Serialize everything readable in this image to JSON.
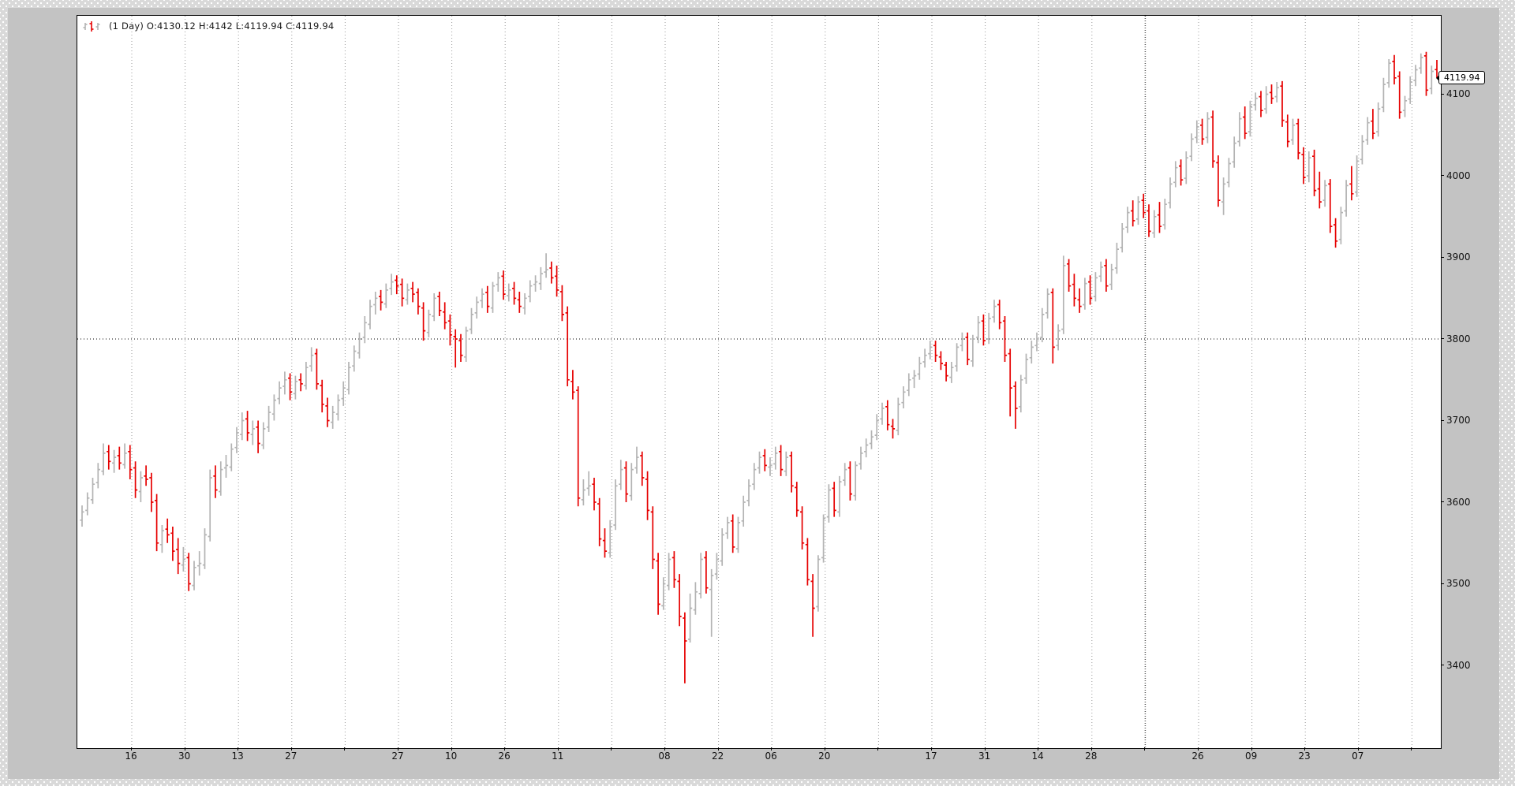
{
  "legend": {
    "text": "(1 Day) O:4130.12 H:4142 L:4119.94 C:4119.94"
  },
  "price_tag": {
    "value": "4119.94"
  },
  "colors": {
    "up_bar": "#b3b3b3",
    "down_bar": "#e60000",
    "grid": "#9a9a9a",
    "dark_grid": "#555555",
    "ref_line": "#333333",
    "plot_bg": "#ffffff",
    "window_bg": "#c3c3c3",
    "outer_bg": "#d9d9d9",
    "axis_text": "#111111"
  },
  "chart_data": {
    "type": "ohlc",
    "period": "1 Day",
    "legend_text": "(1 Day) O:4130.12 H:4142 L:4119.94 C:4119.94",
    "last_bar": {
      "open": 4130.12,
      "high": 4142,
      "low": 4119.94,
      "close": 4119.94
    },
    "last_price_label": "4119.94",
    "y_ticks": [
      4100,
      4000,
      3900,
      3800,
      3700,
      3600,
      3500,
      3400
    ],
    "ylim": [
      3297,
      4198
    ],
    "reference_line": 3800,
    "grid": "dotted",
    "x_tick_labels": [
      "16",
      "30",
      "13",
      "27",
      "",
      "27",
      "10",
      "26",
      "11",
      "",
      "08",
      "22",
      "06",
      "20",
      "",
      "17",
      "31",
      "14",
      "28",
      "",
      "26",
      "09",
      "23",
      "07",
      ""
    ],
    "dark_gridline_index": 19,
    "bars_format": [
      "open",
      "high",
      "low",
      "close"
    ],
    "bars": [
      [
        3578,
        3596,
        3570,
        3588
      ],
      [
        3590,
        3612,
        3584,
        3605
      ],
      [
        3603,
        3630,
        3598,
        3622
      ],
      [
        3624,
        3648,
        3617,
        3640
      ],
      [
        3638,
        3672,
        3633,
        3660
      ],
      [
        3662,
        3670,
        3640,
        3650
      ],
      [
        3648,
        3664,
        3636,
        3655
      ],
      [
        3657,
        3668,
        3640,
        3648
      ],
      [
        3646,
        3672,
        3641,
        3660
      ],
      [
        3662,
        3670,
        3628,
        3640
      ],
      [
        3642,
        3650,
        3605,
        3615
      ],
      [
        3613,
        3638,
        3600,
        3630
      ],
      [
        3632,
        3645,
        3620,
        3628
      ],
      [
        3630,
        3636,
        3588,
        3600
      ],
      [
        3602,
        3610,
        3540,
        3550
      ],
      [
        3548,
        3572,
        3538,
        3565
      ],
      [
        3567,
        3580,
        3550,
        3560
      ],
      [
        3562,
        3570,
        3528,
        3540
      ],
      [
        3542,
        3556,
        3512,
        3525
      ],
      [
        3523,
        3545,
        3515,
        3530
      ],
      [
        3532,
        3538,
        3491,
        3500
      ],
      [
        3498,
        3528,
        3492,
        3520
      ],
      [
        3522,
        3540,
        3510,
        3525
      ],
      [
        3523,
        3568,
        3518,
        3560
      ],
      [
        3558,
        3640,
        3552,
        3630
      ],
      [
        3632,
        3645,
        3605,
        3615
      ],
      [
        3613,
        3650,
        3608,
        3640
      ],
      [
        3642,
        3658,
        3630,
        3645
      ],
      [
        3643,
        3672,
        3638,
        3665
      ],
      [
        3667,
        3692,
        3660,
        3685
      ],
      [
        3683,
        3710,
        3676,
        3700
      ],
      [
        3702,
        3712,
        3675,
        3685
      ],
      [
        3683,
        3700,
        3670,
        3690
      ],
      [
        3692,
        3700,
        3660,
        3672
      ],
      [
        3670,
        3698,
        3665,
        3690
      ],
      [
        3692,
        3718,
        3686,
        3710
      ],
      [
        3708,
        3732,
        3700,
        3725
      ],
      [
        3727,
        3748,
        3720,
        3740
      ],
      [
        3742,
        3760,
        3732,
        3750
      ],
      [
        3752,
        3758,
        3725,
        3735
      ],
      [
        3733,
        3755,
        3726,
        3748
      ],
      [
        3750,
        3758,
        3736,
        3745
      ],
      [
        3743,
        3772,
        3738,
        3765
      ],
      [
        3767,
        3790,
        3760,
        3780
      ],
      [
        3782,
        3788,
        3738,
        3745
      ],
      [
        3743,
        3750,
        3710,
        3720
      ],
      [
        3718,
        3728,
        3692,
        3700
      ],
      [
        3698,
        3718,
        3690,
        3710
      ],
      [
        3708,
        3732,
        3700,
        3725
      ],
      [
        3727,
        3748,
        3718,
        3740
      ],
      [
        3738,
        3772,
        3732,
        3765
      ],
      [
        3767,
        3792,
        3760,
        3785
      ],
      [
        3783,
        3808,
        3776,
        3800
      ],
      [
        3802,
        3828,
        3795,
        3820
      ],
      [
        3818,
        3848,
        3812,
        3840
      ],
      [
        3842,
        3858,
        3830,
        3850
      ],
      [
        3852,
        3860,
        3835,
        3845
      ],
      [
        3843,
        3868,
        3838,
        3860
      ],
      [
        3862,
        3880,
        3854,
        3870
      ],
      [
        3872,
        3878,
        3855,
        3865
      ],
      [
        3867,
        3874,
        3840,
        3850
      ],
      [
        3848,
        3868,
        3842,
        3860
      ],
      [
        3862,
        3870,
        3845,
        3855
      ],
      [
        3857,
        3862,
        3830,
        3840
      ],
      [
        3838,
        3845,
        3798,
        3810
      ],
      [
        3808,
        3836,
        3802,
        3830
      ],
      [
        3828,
        3856,
        3822,
        3850
      ],
      [
        3852,
        3858,
        3828,
        3835
      ],
      [
        3833,
        3845,
        3812,
        3820
      ],
      [
        3822,
        3830,
        3792,
        3805
      ],
      [
        3803,
        3812,
        3765,
        3800
      ],
      [
        3798,
        3806,
        3772,
        3780
      ],
      [
        3778,
        3815,
        3772,
        3810
      ],
      [
        3812,
        3838,
        3806,
        3830
      ],
      [
        3832,
        3852,
        3825,
        3845
      ],
      [
        3847,
        3862,
        3838,
        3855
      ],
      [
        3857,
        3865,
        3832,
        3840
      ],
      [
        3838,
        3870,
        3832,
        3865
      ],
      [
        3867,
        3882,
        3858,
        3875
      ],
      [
        3877,
        3884,
        3848,
        3855
      ],
      [
        3853,
        3868,
        3846,
        3860
      ],
      [
        3862,
        3870,
        3842,
        3850
      ],
      [
        3848,
        3858,
        3832,
        3840
      ],
      [
        3838,
        3856,
        3830,
        3850
      ],
      [
        3852,
        3872,
        3845,
        3865
      ],
      [
        3867,
        3878,
        3858,
        3870
      ],
      [
        3868,
        3888,
        3860,
        3880
      ],
      [
        3882,
        3905,
        3875,
        3885
      ],
      [
        3887,
        3895,
        3868,
        3875
      ],
      [
        3877,
        3890,
        3852,
        3860
      ],
      [
        3858,
        3866,
        3822,
        3830
      ],
      [
        3832,
        3840,
        3742,
        3750
      ],
      [
        3748,
        3762,
        3726,
        3735
      ],
      [
        3737,
        3742,
        3595,
        3605
      ],
      [
        3603,
        3628,
        3596,
        3615
      ],
      [
        3617,
        3638,
        3608,
        3620
      ],
      [
        3622,
        3630,
        3590,
        3600
      ],
      [
        3598,
        3605,
        3546,
        3555
      ],
      [
        3553,
        3568,
        3532,
        3540
      ],
      [
        3538,
        3578,
        3532,
        3570
      ],
      [
        3572,
        3628,
        3566,
        3620
      ],
      [
        3622,
        3652,
        3615,
        3640
      ],
      [
        3642,
        3650,
        3600,
        3610
      ],
      [
        3608,
        3648,
        3602,
        3640
      ],
      [
        3642,
        3668,
        3635,
        3655
      ],
      [
        3657,
        3662,
        3620,
        3630
      ],
      [
        3628,
        3638,
        3578,
        3590
      ],
      [
        3588,
        3595,
        3518,
        3530
      ],
      [
        3528,
        3538,
        3462,
        3475
      ],
      [
        3473,
        3508,
        3468,
        3500
      ],
      [
        3498,
        3538,
        3492,
        3530
      ],
      [
        3532,
        3540,
        3495,
        3505
      ],
      [
        3503,
        3512,
        3448,
        3460
      ],
      [
        3458,
        3465,
        3378,
        3430
      ],
      [
        3432,
        3488,
        3428,
        3470
      ],
      [
        3468,
        3502,
        3462,
        3490
      ],
      [
        3488,
        3538,
        3482,
        3530
      ],
      [
        3532,
        3540,
        3488,
        3495
      ],
      [
        3493,
        3518,
        3435,
        3510
      ],
      [
        3512,
        3538,
        3505,
        3530
      ],
      [
        3528,
        3568,
        3522,
        3560
      ],
      [
        3562,
        3582,
        3555,
        3575
      ],
      [
        3577,
        3585,
        3538,
        3545
      ],
      [
        3543,
        3582,
        3538,
        3575
      ],
      [
        3577,
        3608,
        3570,
        3600
      ],
      [
        3602,
        3628,
        3595,
        3620
      ],
      [
        3622,
        3648,
        3615,
        3640
      ],
      [
        3642,
        3662,
        3635,
        3655
      ],
      [
        3657,
        3665,
        3638,
        3645
      ],
      [
        3643,
        3655,
        3632,
        3645
      ],
      [
        3647,
        3668,
        3640,
        3660
      ],
      [
        3662,
        3670,
        3632,
        3640
      ],
      [
        3638,
        3662,
        3632,
        3655
      ],
      [
        3657,
        3662,
        3612,
        3620
      ],
      [
        3618,
        3625,
        3582,
        3590
      ],
      [
        3588,
        3595,
        3542,
        3550
      ],
      [
        3548,
        3556,
        3498,
        3505
      ],
      [
        3503,
        3512,
        3435,
        3470
      ],
      [
        3472,
        3535,
        3466,
        3530
      ],
      [
        3532,
        3585,
        3526,
        3580
      ],
      [
        3582,
        3622,
        3575,
        3615
      ],
      [
        3617,
        3625,
        3582,
        3590
      ],
      [
        3588,
        3632,
        3582,
        3625
      ],
      [
        3627,
        3648,
        3620,
        3640
      ],
      [
        3642,
        3650,
        3602,
        3610
      ],
      [
        3608,
        3650,
        3602,
        3645
      ],
      [
        3647,
        3668,
        3640,
        3660
      ],
      [
        3662,
        3678,
        3655,
        3670
      ],
      [
        3672,
        3688,
        3665,
        3680
      ],
      [
        3682,
        3708,
        3676,
        3700
      ],
      [
        3702,
        3722,
        3695,
        3715
      ],
      [
        3717,
        3725,
        3688,
        3695
      ],
      [
        3693,
        3702,
        3678,
        3690
      ],
      [
        3688,
        3728,
        3682,
        3720
      ],
      [
        3722,
        3742,
        3715,
        3735
      ],
      [
        3737,
        3758,
        3730,
        3750
      ],
      [
        3752,
        3762,
        3740,
        3755
      ],
      [
        3757,
        3778,
        3750,
        3770
      ],
      [
        3772,
        3788,
        3765,
        3780
      ],
      [
        3782,
        3798,
        3775,
        3790
      ],
      [
        3792,
        3798,
        3772,
        3780
      ],
      [
        3778,
        3785,
        3762,
        3770
      ],
      [
        3768,
        3772,
        3748,
        3755
      ],
      [
        3753,
        3772,
        3746,
        3765
      ],
      [
        3767,
        3795,
        3760,
        3790
      ],
      [
        3792,
        3808,
        3785,
        3800
      ],
      [
        3802,
        3808,
        3768,
        3775
      ],
      [
        3773,
        3805,
        3766,
        3800
      ],
      [
        3802,
        3828,
        3795,
        3820
      ],
      [
        3822,
        3830,
        3792,
        3798
      ],
      [
        3800,
        3832,
        3794,
        3825
      ],
      [
        3827,
        3848,
        3820,
        3840
      ],
      [
        3842,
        3848,
        3812,
        3820
      ],
      [
        3822,
        3828,
        3772,
        3780
      ],
      [
        3782,
        3788,
        3705,
        3740
      ],
      [
        3742,
        3748,
        3690,
        3715
      ],
      [
        3717,
        3756,
        3710,
        3750
      ],
      [
        3752,
        3782,
        3745,
        3775
      ],
      [
        3777,
        3798,
        3770,
        3790
      ],
      [
        3792,
        3808,
        3785,
        3800
      ],
      [
        3802,
        3838,
        3796,
        3830
      ],
      [
        3832,
        3862,
        3825,
        3855
      ],
      [
        3857,
        3862,
        3770,
        3790
      ],
      [
        3792,
        3818,
        3786,
        3810
      ],
      [
        3812,
        3902,
        3806,
        3890
      ],
      [
        3892,
        3898,
        3858,
        3865
      ],
      [
        3867,
        3880,
        3840,
        3850
      ],
      [
        3848,
        3862,
        3832,
        3840
      ],
      [
        3842,
        3875,
        3836,
        3868
      ],
      [
        3870,
        3878,
        3842,
        3850
      ],
      [
        3852,
        3882,
        3846,
        3875
      ],
      [
        3877,
        3895,
        3870,
        3888
      ],
      [
        3890,
        3898,
        3858,
        3865
      ],
      [
        3867,
        3892,
        3860,
        3885
      ],
      [
        3887,
        3918,
        3880,
        3910
      ],
      [
        3912,
        3942,
        3906,
        3935
      ],
      [
        3937,
        3962,
        3930,
        3955
      ],
      [
        3957,
        3970,
        3938,
        3945
      ],
      [
        3947,
        3975,
        3940,
        3968
      ],
      [
        3970,
        3978,
        3948,
        3955
      ],
      [
        3957,
        3965,
        3925,
        3932
      ],
      [
        3930,
        3958,
        3924,
        3950
      ],
      [
        3952,
        3968,
        3930,
        3938
      ],
      [
        3940,
        3972,
        3934,
        3965
      ],
      [
        3967,
        3998,
        3960,
        3990
      ],
      [
        3992,
        4018,
        3986,
        4010
      ],
      [
        4012,
        4020,
        3988,
        3995
      ],
      [
        3997,
        4030,
        3990,
        4022
      ],
      [
        4024,
        4052,
        4018,
        4045
      ],
      [
        4047,
        4068,
        4040,
        4060
      ],
      [
        4062,
        4070,
        4038,
        4045
      ],
      [
        4047,
        4078,
        4040,
        4070
      ],
      [
        4072,
        4080,
        4010,
        4018
      ],
      [
        4016,
        4025,
        3962,
        3970
      ],
      [
        3968,
        3998,
        3952,
        3990
      ],
      [
        3992,
        4022,
        3986,
        4015
      ],
      [
        4017,
        4048,
        4010,
        4040
      ],
      [
        4042,
        4078,
        4036,
        4070
      ],
      [
        4072,
        4085,
        4045,
        4052
      ],
      [
        4054,
        4092,
        4048,
        4085
      ],
      [
        4087,
        4102,
        4080,
        4095
      ],
      [
        4097,
        4104,
        4072,
        4080
      ],
      [
        4082,
        4110,
        4076,
        4100
      ],
      [
        4102,
        4112,
        4088,
        4095
      ],
      [
        4097,
        4115,
        4090,
        4108
      ],
      [
        4110,
        4116,
        4060,
        4068
      ],
      [
        4066,
        4075,
        4035,
        4042
      ],
      [
        4044,
        4070,
        4038,
        4062
      ],
      [
        4064,
        4070,
        4020,
        4028
      ],
      [
        4026,
        4035,
        3990,
        3998
      ],
      [
        4000,
        4030,
        3992,
        4022
      ],
      [
        4024,
        4032,
        3975,
        3982
      ],
      [
        3984,
        4005,
        3960,
        3968
      ],
      [
        3970,
        3995,
        3962,
        3988
      ],
      [
        3990,
        3996,
        3930,
        3938
      ],
      [
        3940,
        3948,
        3912,
        3920
      ],
      [
        3922,
        3962,
        3916,
        3955
      ],
      [
        3957,
        3995,
        3950,
        3988
      ],
      [
        3990,
        4012,
        3970,
        3978
      ],
      [
        3980,
        4025,
        3974,
        4018
      ],
      [
        4020,
        4050,
        4014,
        4042
      ],
      [
        4044,
        4072,
        4038,
        4065
      ],
      [
        4067,
        4082,
        4045,
        4052
      ],
      [
        4054,
        4090,
        4048,
        4082
      ],
      [
        4084,
        4120,
        4078,
        4112
      ],
      [
        4114,
        4143,
        4108,
        4138
      ],
      [
        4140,
        4148,
        4112,
        4120
      ],
      [
        4122,
        4128,
        4070,
        4078
      ],
      [
        4080,
        4098,
        4072,
        4092
      ],
      [
        4094,
        4122,
        4088,
        4115
      ],
      [
        4117,
        4136,
        4110,
        4130
      ],
      [
        4132,
        4150,
        4125,
        4145
      ],
      [
        4147,
        4152,
        4098,
        4105
      ],
      [
        4107,
        4135,
        4100,
        4128
      ],
      [
        4130.12,
        4142,
        4119.94,
        4119.94
      ]
    ]
  }
}
